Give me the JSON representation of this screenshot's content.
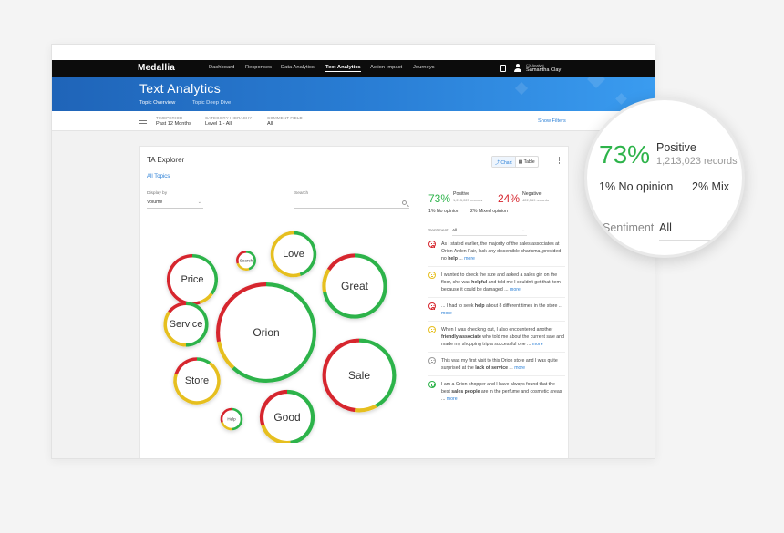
{
  "app": {
    "logo": "Medallia",
    "nav": [
      {
        "label": "Dashboard",
        "active": false
      },
      {
        "label": "Responses",
        "active": false
      },
      {
        "label": "Data Analytics",
        "active": false
      },
      {
        "label": "Text Analytics",
        "active": true
      },
      {
        "label": "Action Impact",
        "active": false
      },
      {
        "label": "Journeys",
        "active": false
      }
    ],
    "user": {
      "role": "CX Analyst",
      "name": "Samantha Clay"
    }
  },
  "header": {
    "title": "Text Analytics",
    "tabs": [
      {
        "label": "Topic Overview",
        "active": true
      },
      {
        "label": "Topic Deep Dive",
        "active": false
      }
    ]
  },
  "filters": {
    "items": [
      {
        "label": "TIMEPERIOD",
        "value": "Past 12 Months"
      },
      {
        "label": "CATEGORY HIERACHY",
        "value": "Level 1 - All"
      },
      {
        "label": "COMMENT FIELD",
        "value": "All"
      }
    ],
    "show_filters": "Show Filters"
  },
  "explorer": {
    "title": "TA Explorer",
    "breadcrumb": "All Topics",
    "view_toggle": {
      "chart": "Chart",
      "table": "Table",
      "selected": "Chart"
    },
    "display_by": {
      "label": "Display by",
      "value": "Volume"
    },
    "search": {
      "label": "Search",
      "placeholder": ""
    }
  },
  "colors": {
    "positive": "#2db34a",
    "negative": "#d6262e",
    "mixed": "#e6bf1f"
  },
  "chart_data": {
    "type": "bubble",
    "topics": [
      {
        "name": "Price",
        "volume": 26,
        "positive": 0.35,
        "mixed": 0.1,
        "negative": 0.55
      },
      {
        "name": "Search",
        "volume": 4,
        "positive": 0.45,
        "mixed": 0.25,
        "negative": 0.3
      },
      {
        "name": "Love",
        "volume": 21,
        "positive": 0.45,
        "mixed": 0.55,
        "negative": 0.0
      },
      {
        "name": "Great",
        "volume": 42,
        "positive": 0.72,
        "mixed": 0.12,
        "negative": 0.16
      },
      {
        "name": "Service",
        "volume": 20,
        "positive": 0.5,
        "mixed": 0.35,
        "negative": 0.15
      },
      {
        "name": "Orion",
        "volume": 100,
        "positive": 0.62,
        "mixed": 0.1,
        "negative": 0.28
      },
      {
        "name": "Store",
        "volume": 22,
        "positive": 0.1,
        "mixed": 0.7,
        "negative": 0.2
      },
      {
        "name": "Sale",
        "volume": 54,
        "positive": 0.42,
        "mixed": 0.1,
        "negative": 0.48
      },
      {
        "name": "Help",
        "volume": 5,
        "positive": 0.5,
        "mixed": 0.2,
        "negative": 0.3
      },
      {
        "name": "Good",
        "volume": 30,
        "positive": 0.48,
        "mixed": 0.22,
        "negative": 0.3
      }
    ]
  },
  "sentiment": {
    "positive": {
      "pct": "73%",
      "label": "Positive",
      "count": "1,213,023 records"
    },
    "negative": {
      "pct": "24%",
      "label": "Negative",
      "count": "422,569 records"
    },
    "no_opinion": "1% No opinion",
    "mixed": "2% Mixed opinion",
    "filter": {
      "label": "Sentiment",
      "value": "All"
    }
  },
  "comments": [
    {
      "sentiment": "neg",
      "before": "As I stated earlier, the majority of the sales associates at Orion Arden Fair, lack any discernible charisma, provided no ",
      "bold": "help",
      "after": " ...",
      "more": "more"
    },
    {
      "sentiment": "mix",
      "before": "I wanted to check the size and asked a sales girl on the floor, she was ",
      "bold": "helpful",
      "after": " and told me I couldn't get that item because it could be damaged ...",
      "more": "more"
    },
    {
      "sentiment": "neg",
      "before": "... I had to seek ",
      "bold": "help",
      "after": " about 8 different times in the store ...",
      "more": "more"
    },
    {
      "sentiment": "mix",
      "before": "When I was checking out, I also encountered another ",
      "bold": "friendly associate",
      "after": " who told me about the current sale and made my shopping trip a successful one ...",
      "more": "more"
    },
    {
      "sentiment": "neu",
      "before": "This was my first visit to this Orion store and I was quite surprised at the ",
      "bold": "lack of service",
      "after": " ...",
      "more": "more"
    },
    {
      "sentiment": "pos",
      "before": "I am a Orion shopper and I have always found that the best ",
      "bold": "sales people",
      "after": " are in the perfume and cosmetic areas ...",
      "more": "more"
    }
  ],
  "magnifier": {
    "pct": "73%",
    "label": "Positive",
    "count": "1,213,023 records",
    "no_opinion": "1% No opinion",
    "mixed": "2% Mix",
    "sent_label": "Sentiment",
    "sent_value": "All"
  }
}
